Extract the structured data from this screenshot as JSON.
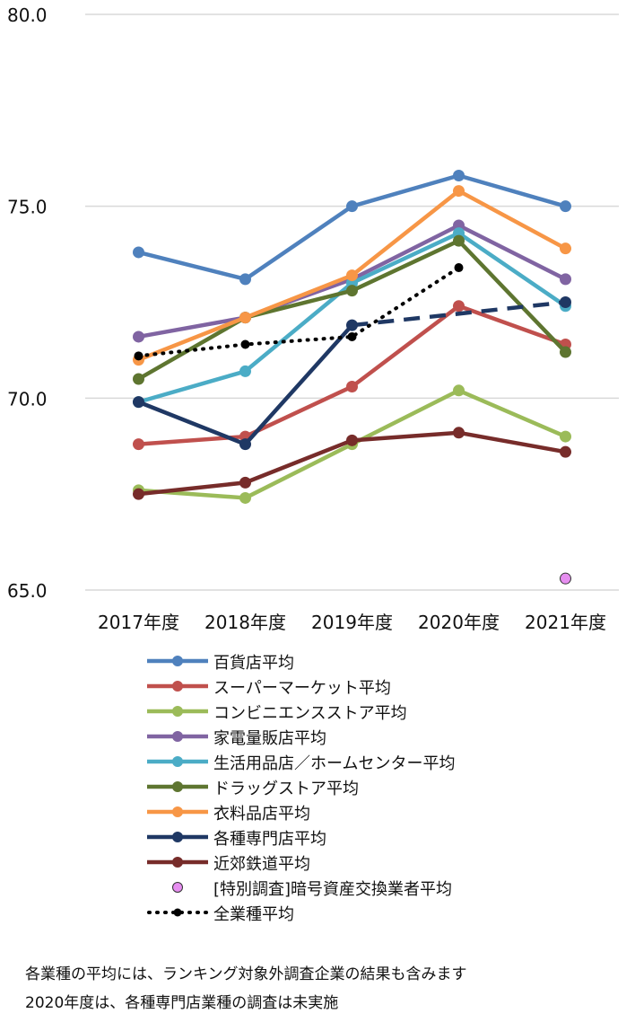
{
  "chart_data": {
    "type": "line",
    "categories": [
      "2017年度",
      "2018年度",
      "2019年度",
      "2020年度",
      "2021年度"
    ],
    "ylim": [
      65.0,
      80.0
    ],
    "yticks": [
      "65.0",
      "70.0",
      "75.0",
      "80.0"
    ],
    "ytick_values": [
      65,
      70,
      75,
      80
    ],
    "series": [
      {
        "name": "百貨店平均",
        "color": "#4f81bd",
        "style": "solid",
        "values": [
          73.8,
          73.1,
          75.0,
          75.8,
          75.0
        ]
      },
      {
        "name": "スーパーマーケット平均",
        "color": "#c0504d",
        "style": "solid",
        "values": [
          68.8,
          69.0,
          70.3,
          72.4,
          71.4
        ]
      },
      {
        "name": "コンビニエンスストア平均",
        "color": "#9bbb59",
        "style": "solid",
        "values": [
          67.6,
          67.4,
          68.8,
          70.2,
          69.0
        ]
      },
      {
        "name": "家電量販店平均",
        "color": "#8064a2",
        "style": "solid",
        "values": [
          71.6,
          72.1,
          73.1,
          74.5,
          73.1
        ]
      },
      {
        "name": "生活用品店／ホームセンター平均",
        "color": "#4bacc6",
        "style": "solid",
        "values": [
          69.9,
          70.7,
          73.0,
          74.3,
          72.4
        ]
      },
      {
        "name": "ドラッグストア平均",
        "color": "#5e7530",
        "style": "solid",
        "values": [
          70.5,
          72.1,
          72.8,
          74.1,
          71.2
        ]
      },
      {
        "name": "衣料品店平均",
        "color": "#f79646",
        "style": "solid",
        "values": [
          71.0,
          72.1,
          73.2,
          75.4,
          73.9
        ]
      },
      {
        "name": "各種専門店平均",
        "color": "#1f3864",
        "style": "solid-dashed",
        "values": [
          69.9,
          68.8,
          71.9,
          null,
          72.5
        ]
      },
      {
        "name": "近郊鉄道平均",
        "color": "#772c2a",
        "style": "solid",
        "values": [
          67.5,
          67.8,
          68.9,
          69.1,
          68.6
        ]
      },
      {
        "name": "[特別調査]暗号資産交換業者平均",
        "color": "#e68ef0",
        "style": "marker",
        "values": [
          null,
          null,
          null,
          null,
          65.3
        ]
      },
      {
        "name": "全業種平均",
        "color": "#000000",
        "style": "dotted",
        "values": [
          71.1,
          71.4,
          71.6,
          73.4,
          null
        ]
      }
    ]
  },
  "notes": [
    "各業種の平均には、ランキング対象外調査企業の結果も含みます",
    "2020年度は、各種専門店業種の調査は未実施"
  ]
}
